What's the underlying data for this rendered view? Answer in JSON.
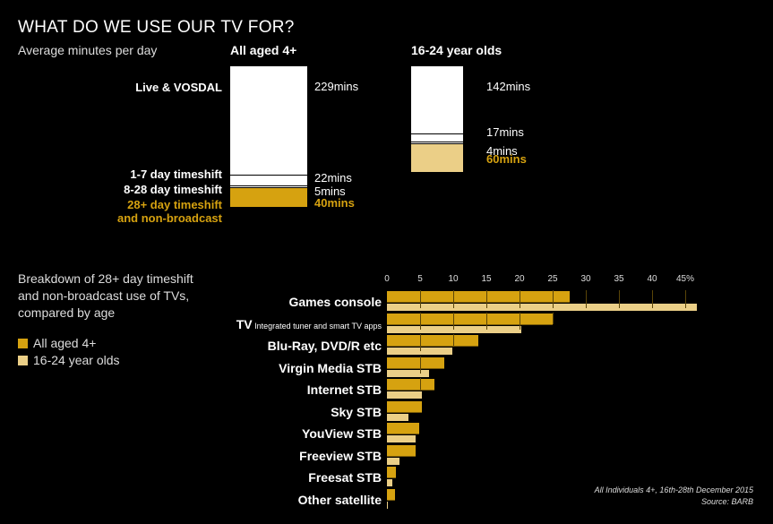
{
  "title": "WHAT DO WE USE OUR TV FOR?",
  "subtitle": "Average minutes per day",
  "colors": {
    "all": "#d6a210",
    "young": "#ebcf87",
    "white": "#ffffff"
  },
  "chart_data": [
    {
      "type": "bar",
      "stacked": true,
      "title": "Average minutes per day",
      "categories": [
        "Live & VOSDAL",
        "1-7 day timeshift",
        "8-28 day timeshift",
        "28+ day timeshift and non-broadcast"
      ],
      "series": [
        {
          "name": "All aged 4+",
          "values": [
            229,
            22,
            5,
            40
          ],
          "labels": [
            "229mins",
            "22mins",
            "5mins",
            "40mins"
          ]
        },
        {
          "name": "16-24 year olds",
          "values": [
            142,
            17,
            4,
            60
          ],
          "labels": [
            "142mins",
            "17mins",
            "4mins",
            "60mins"
          ]
        }
      ],
      "cat_labels": [
        "Live & VOSDAL",
        "1-7 day timeshift",
        "8-28 day timeshift",
        "28+ day timeshift",
        "and non-broadcast"
      ]
    },
    {
      "type": "bar",
      "orientation": "horizontal",
      "title": "Breakdown of 28+ day timeshift and non-broadcast use of TVs, compared by age",
      "categories": [
        "Games console",
        "TV",
        "Blu-Ray, DVD/R etc",
        "Virgin Media STB",
        "Internet STB",
        "Sky STB",
        "YouView STB",
        "Freeview STB",
        "Freesat STB",
        "Other satellite"
      ],
      "tv_note": "Integrated tuner and smart TV apps",
      "series": [
        {
          "name": "All aged 4+",
          "values": [
            27.6,
            25,
            13.8,
            8.6,
            7.2,
            5.3,
            4.9,
            4.3,
            1.4,
            1.2
          ]
        },
        {
          "name": "16-24 year olds",
          "values": [
            46.8,
            20.3,
            9.9,
            6.4,
            5.3,
            3.2,
            4.3,
            1.9,
            0.8,
            0.2
          ]
        }
      ],
      "xlim": [
        0,
        45
      ],
      "ticks": [
        "0",
        "5",
        "10",
        "15",
        "20",
        "25",
        "30",
        "35",
        "40",
        "45%"
      ],
      "legend": "left"
    }
  ],
  "desc_lines": [
    "Breakdown of 28+ day timeshift",
    "and non-broadcast use of TVs,",
    "compared by age"
  ],
  "legend": [
    "All aged 4+",
    "16-24 year olds"
  ],
  "footnote": [
    "All Individuals 4+, 16th-28th December 2015",
    "Source: BARB"
  ]
}
